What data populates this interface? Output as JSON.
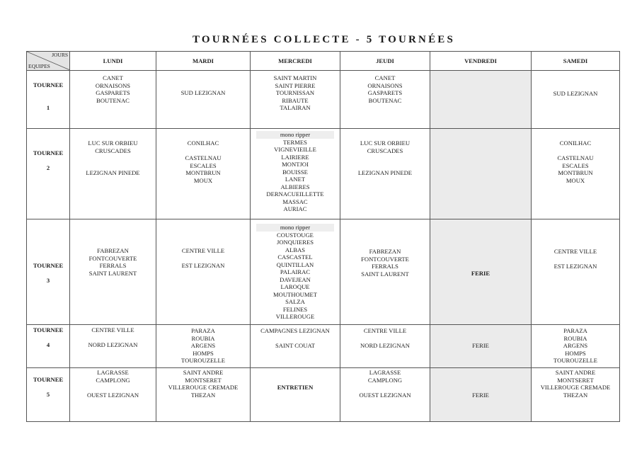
{
  "title": "TOURNÉES COLLECTE - 5 TOURNÉES",
  "corner": {
    "top": "JOURS",
    "bottom": "EQUIPES"
  },
  "days": [
    "LUNDI",
    "MARDI",
    "MERCREDI",
    "JEUDI",
    "VENDREDI",
    "SAMEDI"
  ],
  "rows": [
    {
      "label": [
        "TOURNEE",
        "",
        "",
        "1"
      ],
      "cells": [
        [
          "CANET",
          "ORNAISONS",
          "GASPARETS",
          "BOUTENAC"
        ],
        [
          "SUD LEZIGNAN"
        ],
        [
          "SAINT MARTIN",
          "SAINT PIERRE",
          "TOURNISSAN",
          "RIBAUTE",
          "TALAIRAN"
        ],
        [
          "CANET",
          "ORNAISONS",
          "GASPARETS",
          "BOUTENAC"
        ],
        [],
        [
          "SUD LEZIGNAN"
        ]
      ]
    },
    {
      "label": [
        "TOURNEE",
        "",
        "2"
      ],
      "cells": [
        [
          "LUC SUR ORBIEU",
          "CRUSCADES",
          "",
          "",
          "LEZIGNAN PINEDE"
        ],
        [
          "CONILHAC",
          "",
          "CASTELNAU",
          "ESCALES",
          "MONTBRUN",
          "MOUX"
        ],
        [
          "mono ripper",
          "TERMES",
          "VIGNEVIEILLE",
          "LAIRIERE",
          "MONTJOI",
          "BOUISSE",
          "LANET",
          "ALBIERES",
          "DERNACUEILLETTE",
          "MASSAC",
          "AURIAC"
        ],
        [
          "LUC SUR ORBIEU",
          "CRUSCADES",
          "",
          "",
          "LEZIGNAN PINEDE"
        ],
        [],
        [
          "CONILHAC",
          "",
          "CASTELNAU",
          "ESCALES",
          "MONTBRUN",
          "MOUX"
        ]
      ]
    },
    {
      "label": [
        "TOURNEE",
        "",
        "3"
      ],
      "cells": [
        [
          "FABREZAN",
          "FONTCOUVERTE",
          "FERRALS",
          "SAINT LAURENT"
        ],
        [
          "CENTRE VILLE",
          "",
          "EST LEZIGNAN"
        ],
        [
          "mono ripper",
          "COUSTOUGE",
          "JONQUIERES",
          "ALBAS",
          "CASCASTEL",
          "QUINTILLAN",
          "PALAIRAC",
          "DAVEJEAN",
          "LAROQUE",
          "MOUTHOUMET",
          "SALZA",
          "FELINES",
          "VILLEROUGE"
        ],
        [
          "FABREZAN",
          "FONTCOUVERTE",
          "FERRALS",
          "SAINT LAURENT"
        ],
        [
          "FERIE"
        ],
        [
          "CENTRE VILLE",
          "",
          "EST LEZIGNAN"
        ]
      ]
    },
    {
      "label": [
        "TOURNEE",
        "",
        "4"
      ],
      "cells": [
        [
          "CENTRE VILLE",
          "",
          "NORD LEZIGNAN"
        ],
        [
          "PARAZA",
          "ROUBIA",
          "ARGENS",
          "HOMPS",
          "TOUROUZELLE"
        ],
        [
          "CAMPAGNES LEZIGNAN",
          "",
          "SAINT COUAT"
        ],
        [
          "CENTRE VILLE",
          "",
          "NORD LEZIGNAN"
        ],
        [
          "FERIE"
        ],
        [
          "PARAZA",
          "ROUBIA",
          "ARGENS",
          "HOMPS",
          "TOUROUZELLE"
        ]
      ]
    },
    {
      "label": [
        "TOURNEE",
        "",
        "5"
      ],
      "cells": [
        [
          "LAGRASSE",
          "CAMPLONG",
          "",
          "OUEST LEZIGNAN"
        ],
        [
          "SAINT ANDRE",
          "MONTSERET",
          "VILLEROUGE CREMADE",
          "THEZAN"
        ],
        [
          "ENTRETIEN"
        ],
        [
          "LAGRASSE",
          "CAMPLONG",
          "",
          "OUEST LEZIGNAN"
        ],
        [
          "FERIE"
        ],
        [
          "SAINT ANDRE",
          "MONTSERET",
          "VILLEROUGE CREMADE",
          "THEZAN"
        ]
      ]
    }
  ]
}
